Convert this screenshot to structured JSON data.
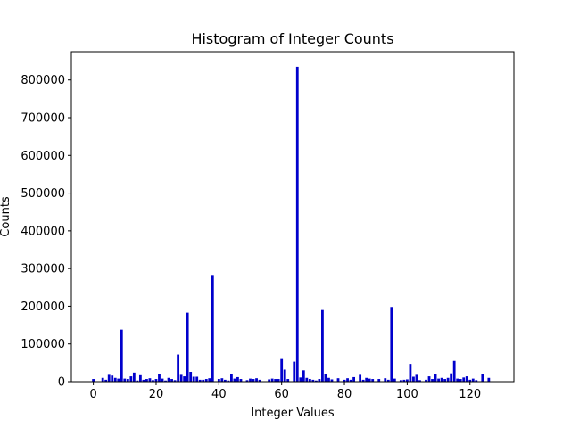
{
  "chart_data": {
    "type": "bar",
    "title": "Histogram of Integer Counts",
    "xlabel": "Integer Values",
    "ylabel": "Counts",
    "xlim": [
      -7,
      134
    ],
    "ylim": [
      0,
      875000
    ],
    "xticks": [
      0,
      20,
      40,
      60,
      80,
      100,
      120
    ],
    "yticks": [
      0,
      100000,
      200000,
      300000,
      400000,
      500000,
      600000,
      700000,
      800000
    ],
    "grid": false,
    "legend": "none",
    "bar_color": "#0000cc",
    "x": [
      0,
      3,
      4,
      5,
      6,
      7,
      8,
      9,
      10,
      11,
      12,
      13,
      14,
      15,
      16,
      17,
      18,
      19,
      20,
      21,
      22,
      23,
      24,
      25,
      26,
      27,
      28,
      29,
      30,
      31,
      32,
      33,
      34,
      35,
      36,
      37,
      38,
      40,
      41,
      42,
      43,
      44,
      45,
      46,
      47,
      49,
      50,
      51,
      52,
      53,
      56,
      57,
      58,
      59,
      60,
      61,
      62,
      64,
      65,
      66,
      67,
      68,
      69,
      70,
      71,
      72,
      73,
      74,
      75,
      76,
      78,
      80,
      81,
      82,
      83,
      85,
      86,
      87,
      88,
      89,
      91,
      93,
      94,
      95,
      96,
      98,
      99,
      100,
      101,
      102,
      103,
      104,
      106,
      107,
      108,
      109,
      110,
      111,
      112,
      113,
      114,
      115,
      116,
      117,
      118,
      119,
      120,
      121,
      122,
      124,
      126
    ],
    "values": [
      7000,
      10000,
      5000,
      18000,
      16000,
      10000,
      8000,
      138000,
      8000,
      7000,
      14000,
      24000,
      3000,
      17000,
      5000,
      7000,
      9000,
      4000,
      7000,
      21000,
      8000,
      3000,
      10000,
      7000,
      4000,
      72000,
      18000,
      14000,
      183000,
      26000,
      13000,
      13000,
      5000,
      5000,
      7000,
      9000,
      283000,
      7000,
      9000,
      5000,
      3000,
      19000,
      8000,
      12000,
      7000,
      4000,
      8000,
      7000,
      9000,
      5000,
      6000,
      8000,
      7000,
      7000,
      60000,
      32000,
      7000,
      53000,
      835000,
      11000,
      30000,
      10000,
      7000,
      5000,
      3000,
      7000,
      190000,
      21000,
      10000,
      6000,
      9000,
      5000,
      9000,
      5000,
      12000,
      18000,
      5000,
      10000,
      8000,
      7000,
      7000,
      9000,
      5000,
      198000,
      8000,
      4000,
      5000,
      6000,
      47000,
      13000,
      18000,
      4000,
      5000,
      14000,
      7000,
      19000,
      8000,
      10000,
      7000,
      10000,
      22000,
      55000,
      8000,
      7000,
      11000,
      14000,
      5000,
      8000,
      4000,
      19000,
      10000
    ]
  }
}
